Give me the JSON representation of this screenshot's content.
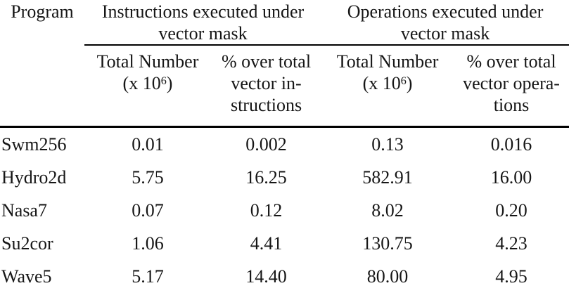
{
  "table": {
    "title_semantic": "Instructions and operations executed under vector mask per program",
    "program_header": "Program",
    "groups": [
      {
        "line1": "Instructions executed under",
        "line2": "vector mask"
      },
      {
        "line1": "Operations executed under",
        "line2": "vector mask"
      }
    ],
    "subheaders": {
      "instr_total": {
        "line1": "Total Number",
        "l2pre": "(x 10",
        "l2sup": "6",
        "l2post": ")"
      },
      "instr_pct": {
        "lines": [
          "% over total",
          "vector in-",
          "structions"
        ]
      },
      "ops_total": {
        "line1": "Total Number",
        "l2pre": "(x 10",
        "l2sup": "6",
        "l2post": ")"
      },
      "ops_pct": {
        "lines": [
          "% over total",
          "vector opera-",
          "tions"
        ]
      }
    },
    "rows": [
      {
        "program": "Swm256",
        "instr_total": "0.01",
        "instr_pct": "0.002",
        "ops_total": "0.13",
        "ops_pct": "0.016"
      },
      {
        "program": "Hydro2d",
        "instr_total": "5.75",
        "instr_pct": "16.25",
        "ops_total": "582.91",
        "ops_pct": "16.00"
      },
      {
        "program": "Nasa7",
        "instr_total": "0.07",
        "instr_pct": "0.12",
        "ops_total": "8.02",
        "ops_pct": "0.20"
      },
      {
        "program": "Su2cor",
        "instr_total": "1.06",
        "instr_pct": "4.41",
        "ops_total": "130.75",
        "ops_pct": "4.23"
      },
      {
        "program": "Wave5",
        "instr_total": "5.17",
        "instr_pct": "14.40",
        "ops_total": "80.00",
        "ops_pct": "4.95"
      }
    ],
    "colors": {
      "text": "#161616",
      "rule": "#000000",
      "background": "#ffffff"
    }
  }
}
